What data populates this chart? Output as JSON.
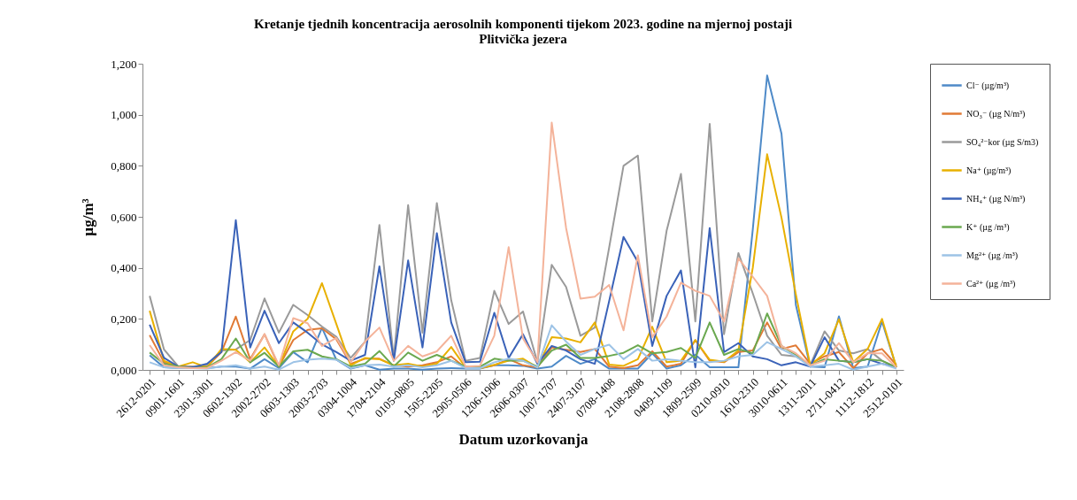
{
  "chart_data": {
    "type": "line",
    "title": "Kretanje tjednih koncentracija  aerosolnih  komponenti  tijekom 2023. godine na mjernoj postaji\nPlitvička jezera",
    "xlabel": "Datum uzorkovanja",
    "ylabel": "µg/m³",
    "categories": [
      "2612-0201",
      null,
      "0901-1601",
      null,
      "2301-3001",
      null,
      "0602-1302",
      null,
      "2002-2702",
      null,
      "0603-1303",
      null,
      "2003-2703",
      null,
      "0304-1004",
      null,
      "1704-2104",
      null,
      "0105-0805",
      null,
      "1505-2205",
      null,
      "2905-0506",
      null,
      "1206-1906",
      null,
      "2606-0307",
      null,
      "1007-1707",
      null,
      "2407-3107",
      null,
      "0708-1408",
      null,
      "2108-2808",
      null,
      "0409-1109",
      null,
      "1809-2509",
      null,
      "0210-0910",
      null,
      "1610-2310",
      null,
      "3010-0611",
      null,
      "1311-2011",
      null,
      "2711-0412",
      null,
      "1112-1812",
      null,
      "2512-0101"
    ],
    "ylim": [
      0,
      1.2
    ],
    "yticks": [
      {
        "value": 0,
        "label": "0,000"
      },
      {
        "value": 0.2,
        "label": "0,200"
      },
      {
        "value": 0.4,
        "label": "0,400"
      },
      {
        "value": 0.6,
        "label": "0,600"
      },
      {
        "value": 0.8,
        "label": "0,800"
      },
      {
        "value": 1,
        "label": "1,000"
      },
      {
        "value": 1.2,
        "label": "1,200"
      }
    ],
    "legend": "right",
    "series": [
      {
        "name": "Cl⁻ (µg/m³)",
        "color": "#4e8ac8",
        "values": [
          0.057,
          0.01,
          0.007,
          0.007,
          0.007,
          0.013,
          0.013,
          0.005,
          0.042,
          0.007,
          0.07,
          0.03,
          0.165,
          0.04,
          0.005,
          0.018,
          0.001,
          0.005,
          0.005,
          0.001,
          0.005,
          0.007,
          0.005,
          0.005,
          0.018,
          0.018,
          0.016,
          0.005,
          0.013,
          0.055,
          0.024,
          0.042,
          0.005,
          0.005,
          0.005,
          0.065,
          0.005,
          0.018,
          0.06,
          0.01,
          0.01,
          0.01,
          0.55,
          1.154,
          0.926,
          0.255,
          0.013,
          0.01,
          0.21,
          0.007,
          0.013,
          0.19,
          0.01
        ]
      },
      {
        "name": "NO₃⁻ (µg N/m³)",
        "color": "#e07a35",
        "values": [
          0.136,
          0.03,
          0.013,
          0.013,
          0.013,
          0.07,
          0.209,
          0.042,
          0.14,
          0.013,
          0.117,
          0.157,
          0.163,
          0.12,
          0.024,
          0.044,
          0.044,
          0.018,
          0.013,
          0.018,
          0.03,
          0.053,
          0.007,
          0.007,
          0.018,
          0.042,
          0.018,
          0.01,
          0.088,
          0.079,
          0.07,
          0.082,
          0.013,
          0.007,
          0.018,
          0.073,
          0.013,
          0.024,
          0.117,
          0.036,
          0.03,
          0.07,
          0.076,
          0.186,
          0.082,
          0.096,
          0.024,
          0.053,
          0.07,
          0.007,
          0.065,
          0.082,
          0.02
        ]
      },
      {
        "name": "SO₄²⁻kor (µg S/m3)",
        "color": "#9a9a9a",
        "values": [
          0.29,
          0.08,
          0.013,
          0.013,
          0.02,
          0.076,
          0.08,
          0.117,
          0.28,
          0.146,
          0.255,
          0.215,
          0.17,
          0.13,
          0.047,
          0.11,
          0.568,
          0.047,
          0.646,
          0.146,
          0.654,
          0.273,
          0.036,
          0.047,
          0.31,
          0.18,
          0.229,
          0.03,
          0.412,
          0.325,
          0.134,
          0.166,
          0.48,
          0.8,
          0.84,
          0.19,
          0.545,
          0.768,
          0.19,
          0.964,
          0.14,
          0.458,
          0.3,
          0.134,
          0.059,
          0.053,
          0.018,
          0.151,
          0.076,
          0.065,
          0.082,
          0.036,
          0.01
        ]
      },
      {
        "name": "Na⁺ (µg/m³)",
        "color": "#e8b000",
        "values": [
          0.232,
          0.036,
          0.013,
          0.03,
          0.01,
          0.082,
          0.079,
          0.03,
          0.088,
          0.013,
          0.151,
          0.2,
          0.34,
          0.18,
          0.018,
          0.047,
          0.042,
          0.018,
          0.024,
          0.013,
          0.024,
          0.09,
          0.01,
          0.007,
          0.02,
          0.036,
          0.044,
          0.01,
          0.128,
          0.123,
          0.108,
          0.186,
          0.021,
          0.016,
          0.042,
          0.169,
          0.03,
          0.036,
          0.117,
          0.04,
          0.032,
          0.076,
          0.4,
          0.845,
          0.597,
          0.296,
          0.018,
          0.065,
          0.198,
          0.03,
          0.082,
          0.2,
          0.01
        ]
      },
      {
        "name": "NH₄⁺ (µg N/m³)",
        "color": "#3a62b8",
        "values": [
          0.177,
          0.047,
          0.013,
          0.01,
          0.024,
          0.07,
          0.587,
          0.088,
          0.232,
          0.105,
          0.186,
          0.146,
          0.1,
          0.07,
          0.036,
          0.059,
          0.406,
          0.036,
          0.429,
          0.088,
          0.536,
          0.186,
          0.03,
          0.032,
          0.224,
          0.047,
          0.14,
          0.024,
          0.094,
          0.076,
          0.042,
          0.024,
          0.27,
          0.521,
          0.423,
          0.094,
          0.29,
          0.39,
          0.01,
          0.556,
          0.07,
          0.105,
          0.053,
          0.042,
          0.018,
          0.03,
          0.013,
          0.128,
          0.036,
          0.03,
          0.042,
          0.024,
          0.01
        ]
      },
      {
        "name": "K⁺ (µg /m³)",
        "color": "#6aa84f",
        "values": [
          0.068,
          0.024,
          0.013,
          0.007,
          0.01,
          0.042,
          0.123,
          0.03,
          0.067,
          0.013,
          0.073,
          0.079,
          0.053,
          0.042,
          0.013,
          0.024,
          0.074,
          0.013,
          0.068,
          0.036,
          0.059,
          0.036,
          0.013,
          0.013,
          0.044,
          0.036,
          0.036,
          0.013,
          0.076,
          0.099,
          0.047,
          0.047,
          0.055,
          0.067,
          0.097,
          0.065,
          0.07,
          0.086,
          0.047,
          0.186,
          0.059,
          0.082,
          0.065,
          0.221,
          0.094,
          0.059,
          0.018,
          0.042,
          0.036,
          0.03,
          0.042,
          0.036,
          0.01
        ]
      },
      {
        "name": "Mg²⁺ (µg /m³)",
        "color": "#9dc3e6",
        "values": [
          0.03,
          0.01,
          0.007,
          0.007,
          0.005,
          0.013,
          0.018,
          0.005,
          0.013,
          0.001,
          0.03,
          0.04,
          0.044,
          0.04,
          0.007,
          0.018,
          0.021,
          0.013,
          0.018,
          0.01,
          0.018,
          0.036,
          0.007,
          0.007,
          0.03,
          0.044,
          0.036,
          0.01,
          0.175,
          0.111,
          0.059,
          0.082,
          0.099,
          0.042,
          0.082,
          0.036,
          0.042,
          0.036,
          0.03,
          0.03,
          0.036,
          0.053,
          0.059,
          0.109,
          0.082,
          0.053,
          0.013,
          0.018,
          0.024,
          0.001,
          0.013,
          0.024,
          0.005
        ]
      },
      {
        "name": "Ca²⁺ (µg /m³)",
        "color": "#f4b39a",
        "values": [
          0.097,
          0.018,
          0.01,
          0.007,
          0.007,
          0.036,
          0.07,
          0.036,
          0.14,
          0.018,
          0.203,
          0.183,
          0.094,
          0.125,
          0.03,
          0.111,
          0.166,
          0.036,
          0.094,
          0.053,
          0.073,
          0.134,
          0.013,
          0.016,
          0.134,
          0.481,
          0.123,
          0.03,
          0.969,
          0.556,
          0.279,
          0.287,
          0.333,
          0.155,
          0.449,
          0.128,
          0.209,
          0.342,
          0.31,
          0.29,
          0.19,
          0.437,
          0.365,
          0.29,
          0.094,
          0.065,
          0.018,
          0.036,
          0.105,
          0.03,
          0.065,
          0.065,
          0.01
        ]
      }
    ]
  }
}
